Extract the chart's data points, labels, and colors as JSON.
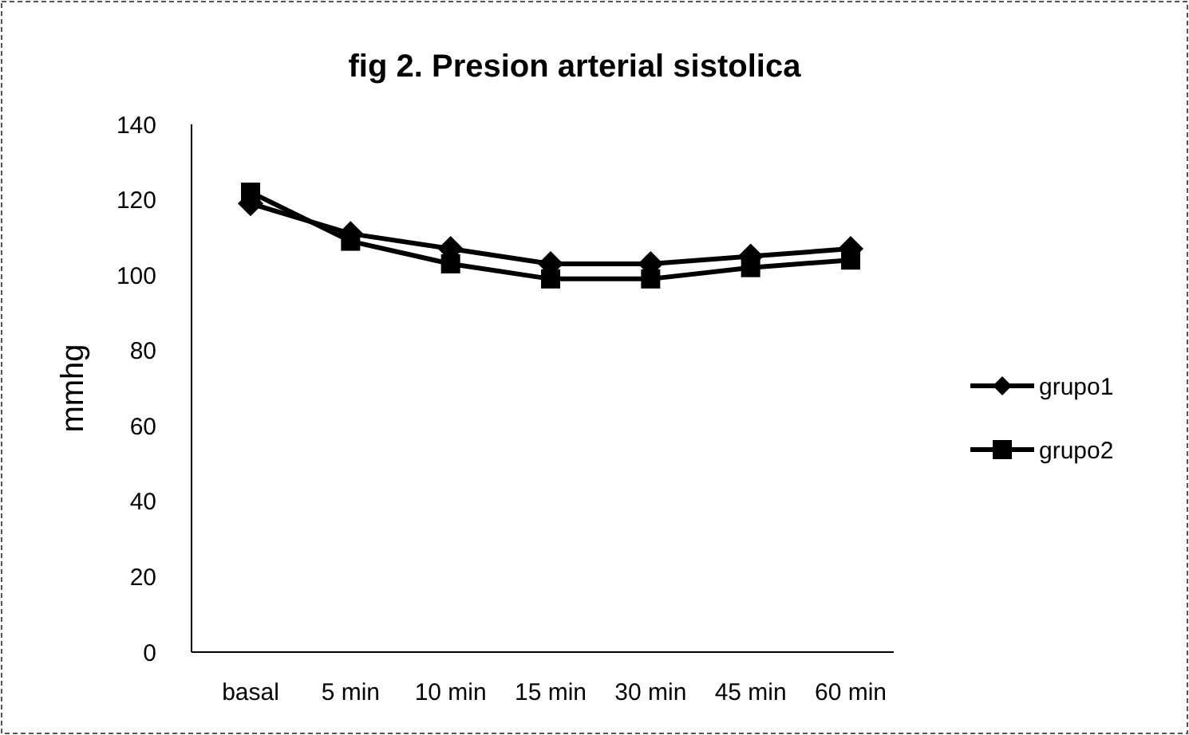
{
  "chart_data": {
    "type": "line",
    "title": "fig 2. Presion arterial sistolica",
    "ylabel": "mmhg",
    "categories": [
      "basal",
      "5 min",
      "10 min",
      "15 min",
      "30 min",
      "45 min",
      "60 min"
    ],
    "series": [
      {
        "name": "grupo1",
        "color": "#000000",
        "marker": "diamond",
        "values": [
          119,
          111,
          107,
          103,
          103,
          105,
          107
        ]
      },
      {
        "name": "grupo2",
        "color": "#000000",
        "marker": "square",
        "values": [
          122,
          109,
          103,
          99,
          99,
          102,
          104
        ]
      }
    ],
    "ylim": [
      0,
      140
    ],
    "yticks": [
      0,
      20,
      40,
      60,
      80,
      100,
      120,
      140
    ],
    "legend": "right",
    "grid": false
  }
}
